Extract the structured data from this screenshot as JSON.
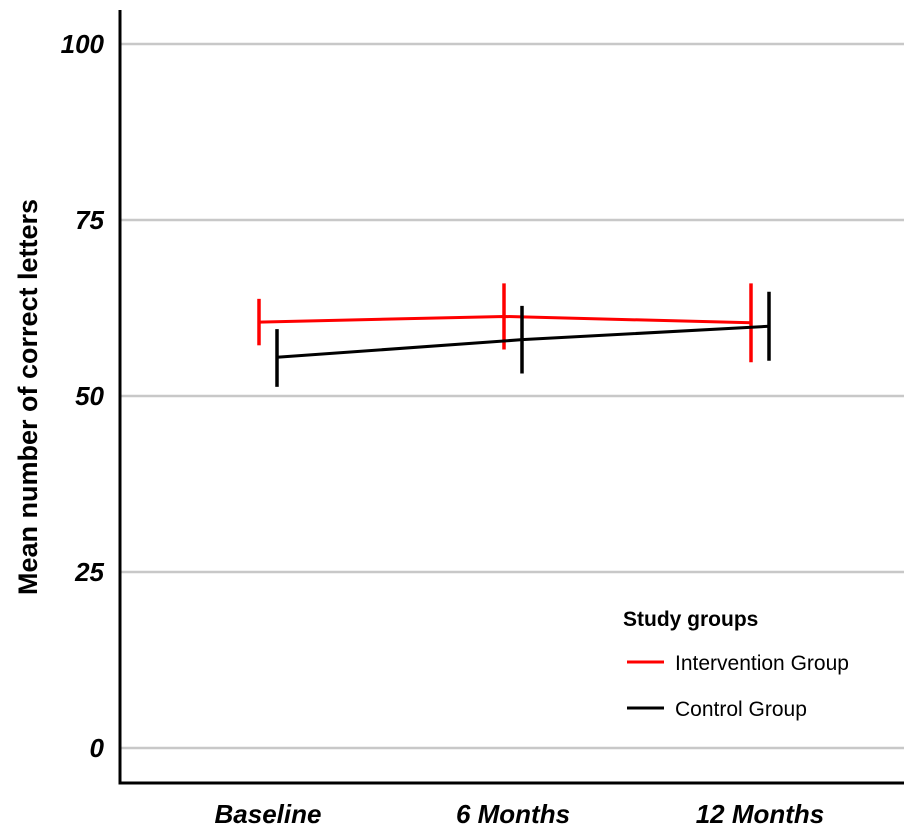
{
  "chart_data": {
    "type": "line",
    "title": "",
    "xlabel": "",
    "ylabel": "Mean number of correct letters",
    "categories": [
      "Baseline",
      "6 Months",
      "12 Months"
    ],
    "ylim": [
      0,
      100
    ],
    "yticks": [
      0,
      25,
      50,
      75,
      100
    ],
    "grid": true,
    "legend": {
      "title": "Study groups",
      "placement": "bottom-right"
    },
    "series": [
      {
        "name": "Intervention Group",
        "color": "#ff0000",
        "values": [
          60.5,
          61.3,
          60.4
        ],
        "error_low": [
          57.2,
          56.6,
          54.8
        ],
        "error_high": [
          63.8,
          66.0,
          66.0
        ]
      },
      {
        "name": "Control Group",
        "color": "#000000",
        "values": [
          55.5,
          58.0,
          59.9
        ],
        "error_low": [
          51.3,
          53.2,
          55.0
        ],
        "error_high": [
          59.5,
          62.8,
          64.8
        ]
      }
    ]
  }
}
